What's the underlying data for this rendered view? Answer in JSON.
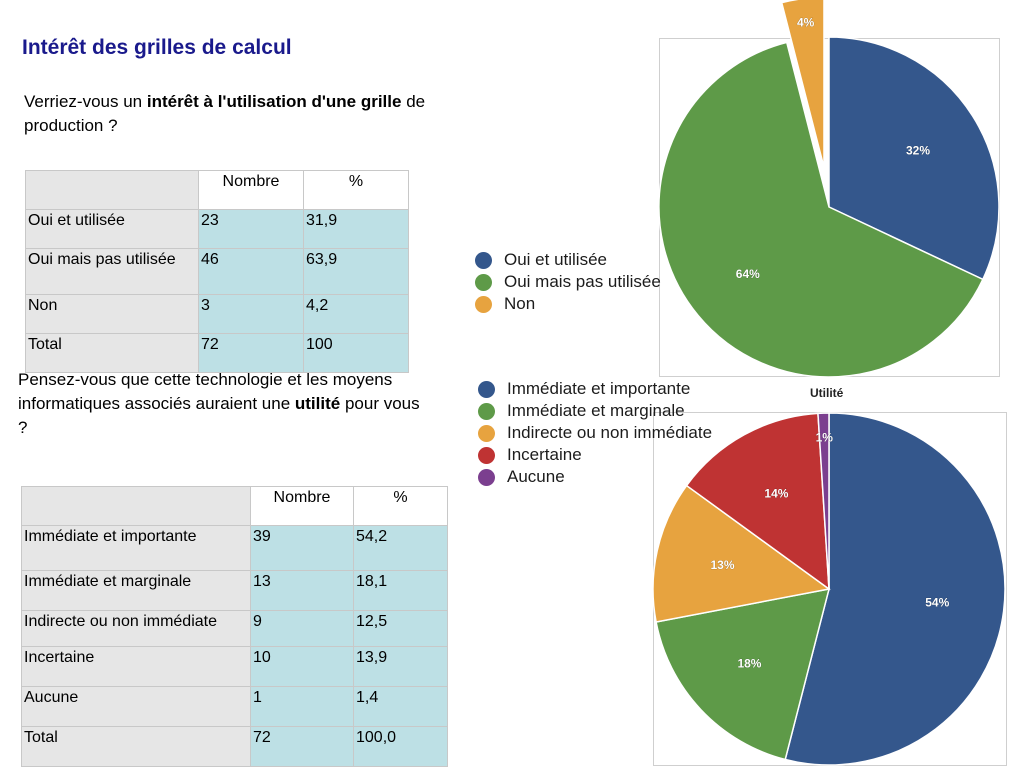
{
  "title": "Intérêt des grilles de calcul",
  "question1": {
    "pre": "Verriez-vous un ",
    "bold": "intérêt à l'utilisation d'une grille",
    "post": " de production ?"
  },
  "question2": {
    "pre": "Pensez-vous que cette technologie et les moyens informatiques associés auraient une ",
    "bold": "utilité",
    "post": " pour vous ?"
  },
  "table1": {
    "headers": [
      "",
      "Nombre",
      "%"
    ],
    "rows": [
      [
        "Oui et utilisée",
        "23",
        "31,9"
      ],
      [
        "Oui mais pas utilisée",
        "46",
        "63,9"
      ],
      [
        "Non",
        "3",
        "4,2"
      ],
      [
        "Total",
        "72",
        "100"
      ]
    ]
  },
  "table2": {
    "headers": [
      "",
      "Nombre",
      "%"
    ],
    "rows": [
      [
        "Immédiate et importante",
        "39",
        "54,2"
      ],
      [
        "Immédiate et marginale",
        "13",
        "18,1"
      ],
      [
        "Indirecte ou non immédiate",
        "9",
        "12,5"
      ],
      [
        "Incertaine",
        "10",
        "13,9"
      ],
      [
        "Aucune",
        "1",
        "1,4"
      ],
      [
        "Total",
        "72",
        "100,0"
      ]
    ]
  },
  "chart_data": [
    {
      "type": "pie",
      "title": "",
      "categories": [
        "Oui et utilisée",
        "Oui mais pas utilisée",
        "Non"
      ],
      "values": [
        32,
        64,
        4
      ],
      "labels": [
        "32%",
        "64%",
        "4%"
      ],
      "colors": [
        "#34578c",
        "#5e9a48",
        "#e7a33f"
      ],
      "exploded": [
        "Non"
      ],
      "legend": "left"
    },
    {
      "type": "pie",
      "title": "Utilité",
      "categories": [
        "Immédiate et importante",
        "Immédiate et marginale",
        "Indirecte ou non immédiate",
        "Incertaine",
        "Aucune"
      ],
      "values": [
        54,
        18,
        13,
        14,
        1
      ],
      "labels": [
        "54%",
        "18%",
        "13%",
        "14%",
        "1%"
      ],
      "colors": [
        "#34578c",
        "#5e9a48",
        "#e7a33f",
        "#bf3333",
        "#7b3f8f"
      ],
      "legend": "left"
    }
  ]
}
